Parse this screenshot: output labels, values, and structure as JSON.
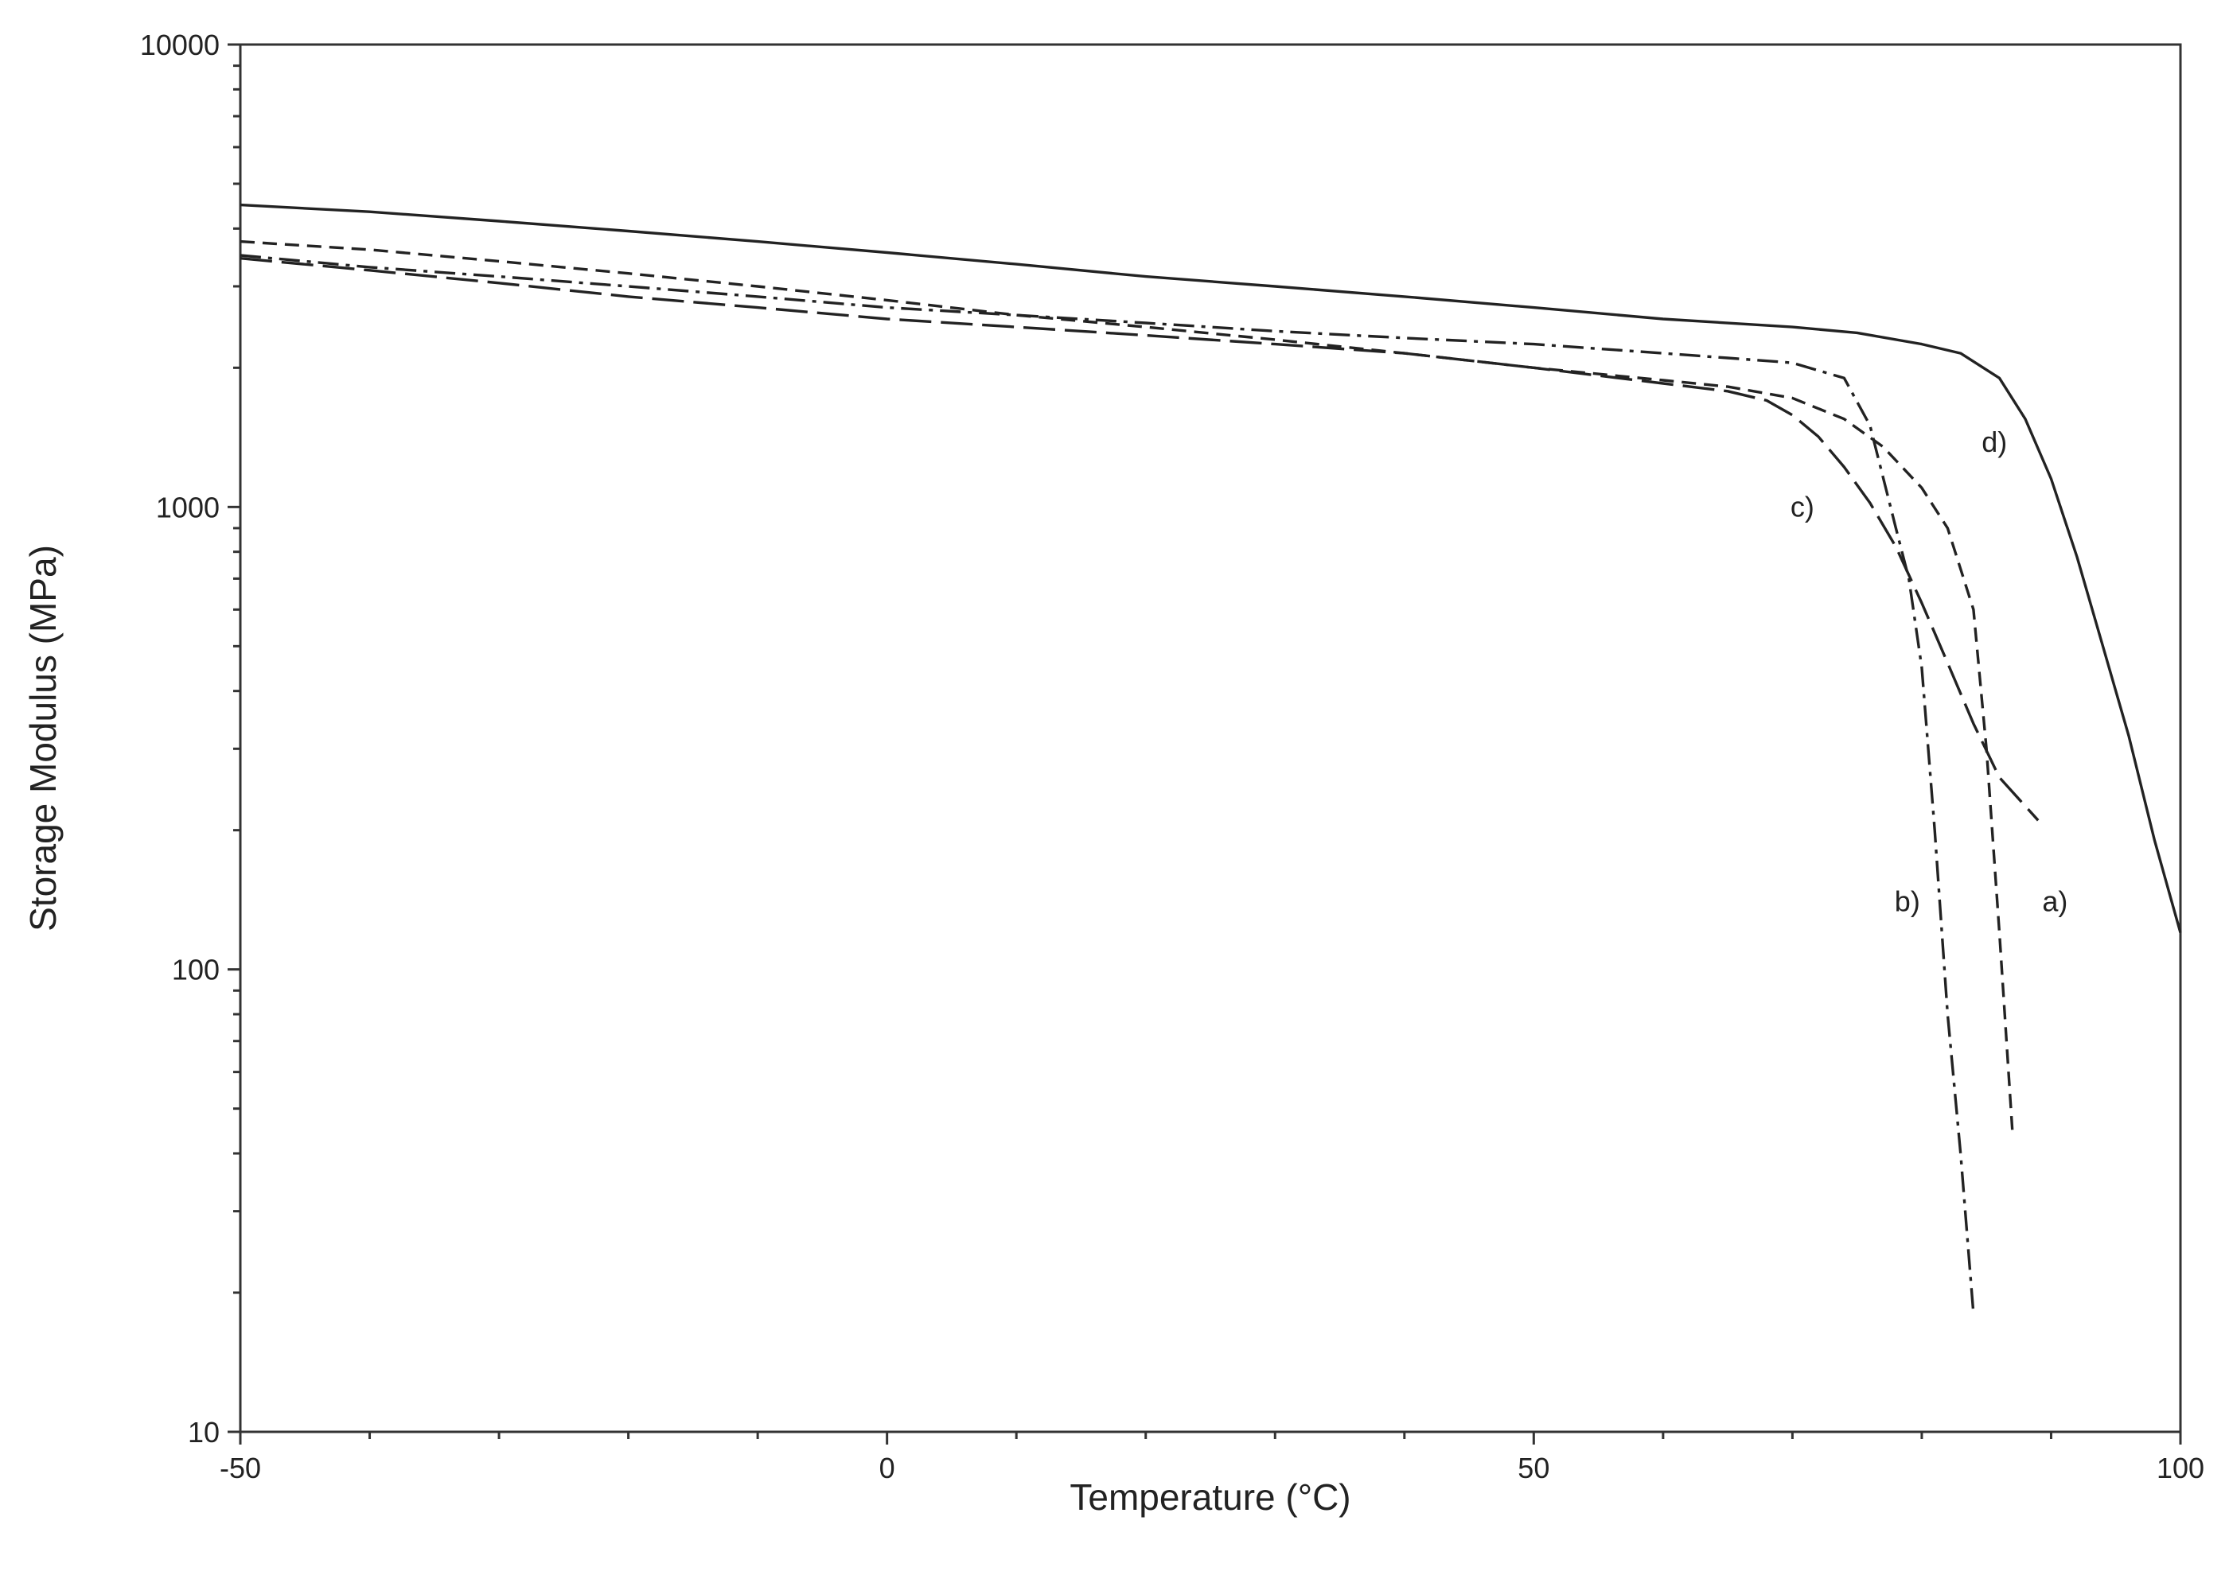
{
  "chart_data": {
    "type": "line",
    "title": "",
    "xlabel": "Temperature (°C)",
    "ylabel": "Storage Modulus (MPa)",
    "xlim": [
      -50,
      100
    ],
    "ylim": [
      10,
      10000
    ],
    "yscale": "log",
    "grid": false,
    "x_ticks": [
      -50,
      0,
      50,
      100
    ],
    "x_tick_labels": [
      "-50",
      "0",
      "50",
      "100"
    ],
    "y_ticks": [
      10,
      100,
      1000,
      10000
    ],
    "y_tick_labels": [
      "10",
      "100",
      "1000",
      "10000"
    ],
    "series": [
      {
        "name": "a)",
        "linestyle": "dashed",
        "x": [
          -50,
          -40,
          -30,
          -20,
          -10,
          0,
          10,
          20,
          30,
          40,
          50,
          60,
          65,
          70,
          74,
          77,
          80,
          82,
          84,
          85,
          86,
          87
        ],
        "y": [
          3750,
          3600,
          3400,
          3200,
          3000,
          2800,
          2600,
          2450,
          2300,
          2150,
          2000,
          1880,
          1820,
          1720,
          1550,
          1350,
          1100,
          900,
          600,
          300,
          120,
          45
        ]
      },
      {
        "name": "b)",
        "linestyle": "dashdot",
        "x": [
          -50,
          -40,
          -30,
          -20,
          -10,
          0,
          10,
          20,
          30,
          40,
          50,
          60,
          65,
          70,
          74,
          76,
          78,
          79,
          80,
          81,
          82,
          83,
          84
        ],
        "y": [
          3500,
          3300,
          3150,
          3000,
          2850,
          2700,
          2600,
          2500,
          2400,
          2320,
          2250,
          2150,
          2100,
          2050,
          1900,
          1500,
          900,
          700,
          450,
          200,
          80,
          40,
          18
        ]
      },
      {
        "name": "c)",
        "linestyle": "longdash",
        "x": [
          -50,
          -40,
          -30,
          -20,
          -10,
          0,
          10,
          20,
          30,
          40,
          50,
          60,
          65,
          68,
          70,
          72,
          74,
          76,
          78,
          80,
          82,
          84,
          86,
          89
        ],
        "y": [
          3450,
          3250,
          3050,
          2850,
          2700,
          2550,
          2450,
          2350,
          2250,
          2150,
          2000,
          1850,
          1780,
          1700,
          1580,
          1420,
          1220,
          1020,
          820,
          620,
          460,
          340,
          260,
          210
        ]
      },
      {
        "name": "d)",
        "linestyle": "solid",
        "x": [
          -50,
          -40,
          -30,
          -20,
          -10,
          0,
          10,
          20,
          30,
          40,
          50,
          60,
          70,
          75,
          80,
          83,
          86,
          88,
          90,
          92,
          94,
          96,
          98,
          100
        ],
        "y": [
          4500,
          4350,
          4150,
          3950,
          3750,
          3550,
          3350,
          3150,
          3000,
          2850,
          2700,
          2550,
          2450,
          2380,
          2250,
          2150,
          1900,
          1550,
          1150,
          780,
          500,
          320,
          190,
          120
        ]
      }
    ]
  }
}
